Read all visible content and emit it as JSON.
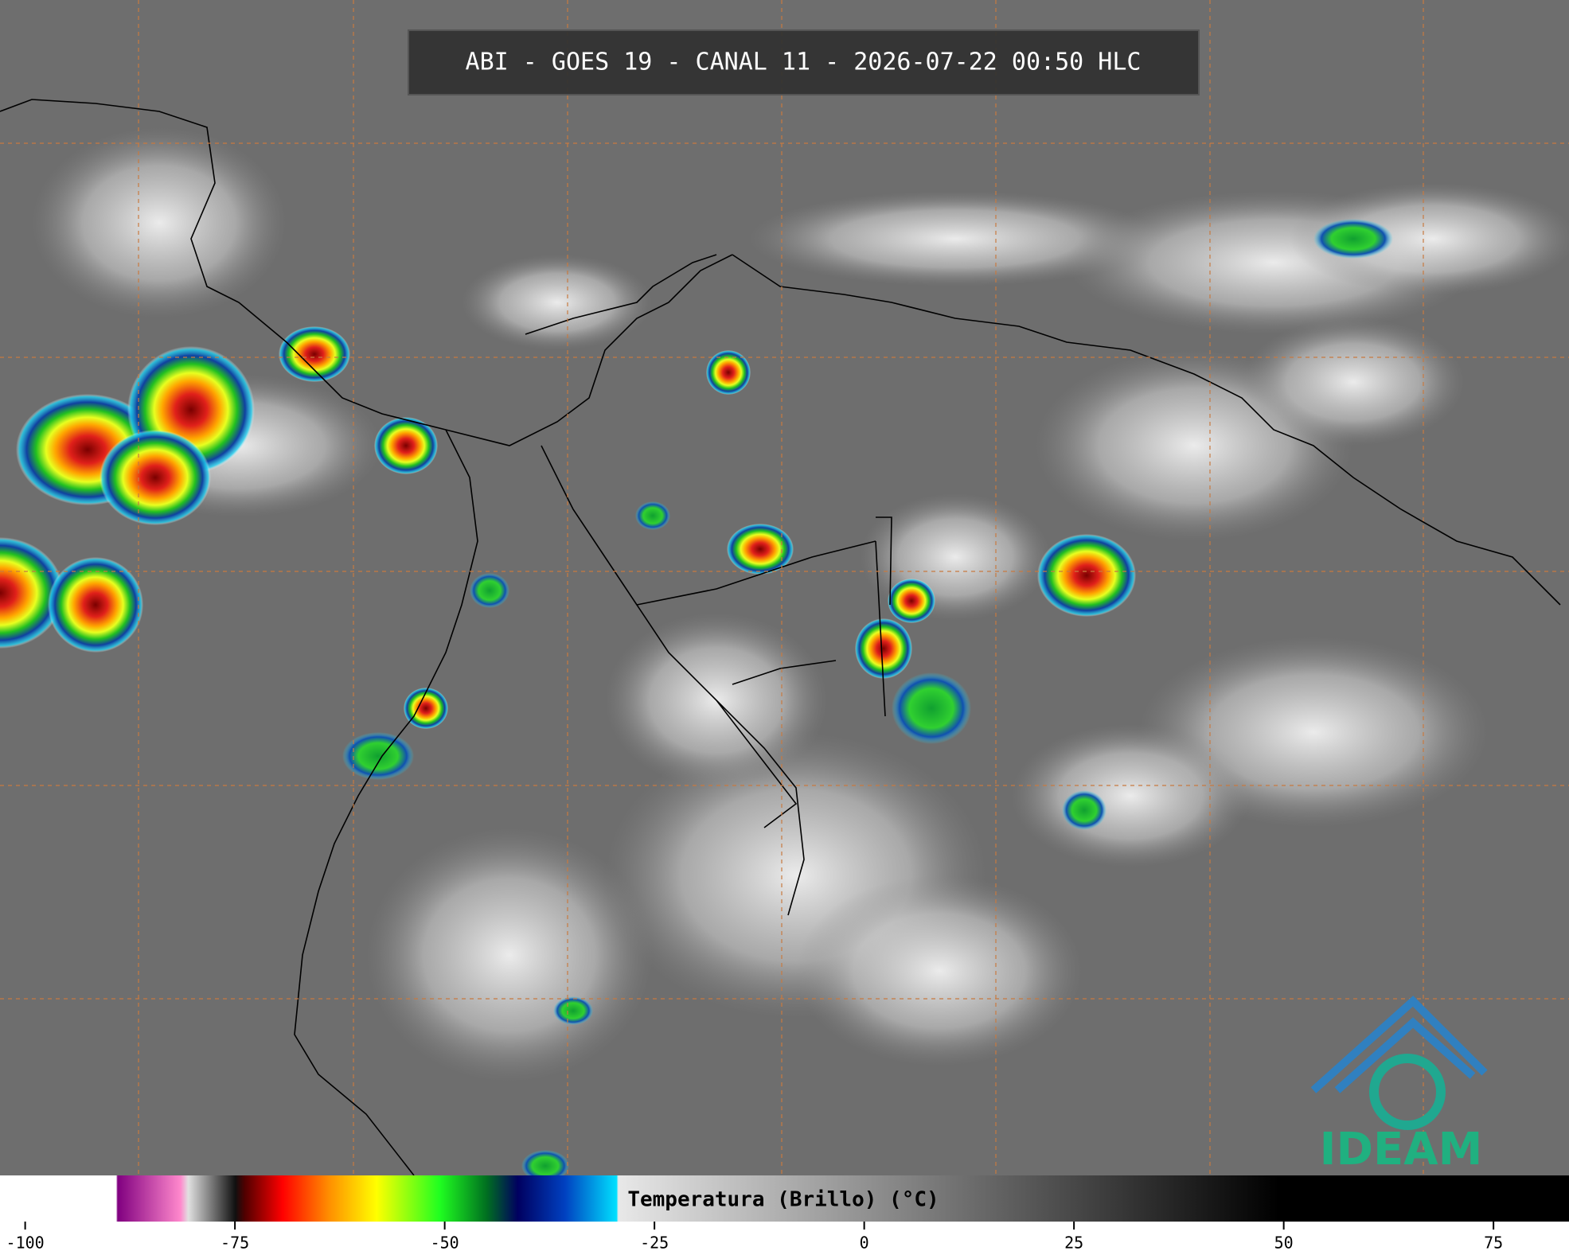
{
  "header": {
    "title": "ABI - GOES 19 - CANAL 11 - 2026-07-22 00:50 HLC"
  },
  "colorbar": {
    "label": "Temperatura (Brillo) (°C)",
    "lim": [
      -103,
      84
    ],
    "ticks": [
      -100,
      -75,
      -50,
      -25,
      0,
      25,
      50,
      75
    ]
  },
  "logo": {
    "text": "IDEAM"
  }
}
